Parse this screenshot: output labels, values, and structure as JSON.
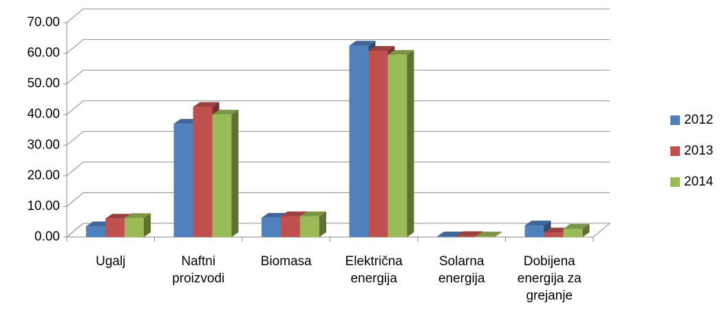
{
  "chart_data": {
    "type": "bar3d",
    "categories": [
      "Ugalj",
      "Naftni proizvodi",
      "Biomasa",
      "Električna energija",
      "Solarna energija",
      "Dobijena energija za grejanje"
    ],
    "series": [
      {
        "name": "2012",
        "color": "#4f81bd",
        "values": [
          3.5,
          37,
          6.3,
          62.5,
          0.2,
          3.8
        ]
      },
      {
        "name": "2013",
        "color": "#c0504d",
        "values": [
          6,
          42.5,
          6.8,
          60.8,
          0.3,
          1.5
        ]
      },
      {
        "name": "2014",
        "color": "#9bbb59",
        "values": [
          6.2,
          40,
          6.8,
          59.5,
          0.2,
          2.7
        ]
      }
    ],
    "ylim": [
      0,
      70
    ],
    "yticks": [
      {
        "value": 0,
        "label": "0.00"
      },
      {
        "value": 10,
        "label": "10.00"
      },
      {
        "value": 20,
        "label": "20.00"
      },
      {
        "value": 30,
        "label": "30.00"
      },
      {
        "value": 40,
        "label": "40.00"
      },
      {
        "value": 50,
        "label": "50.00"
      },
      {
        "value": 60,
        "label": "60.00"
      },
      {
        "value": 70,
        "label": "70.00"
      }
    ],
    "grid": true,
    "legend": "right"
  }
}
